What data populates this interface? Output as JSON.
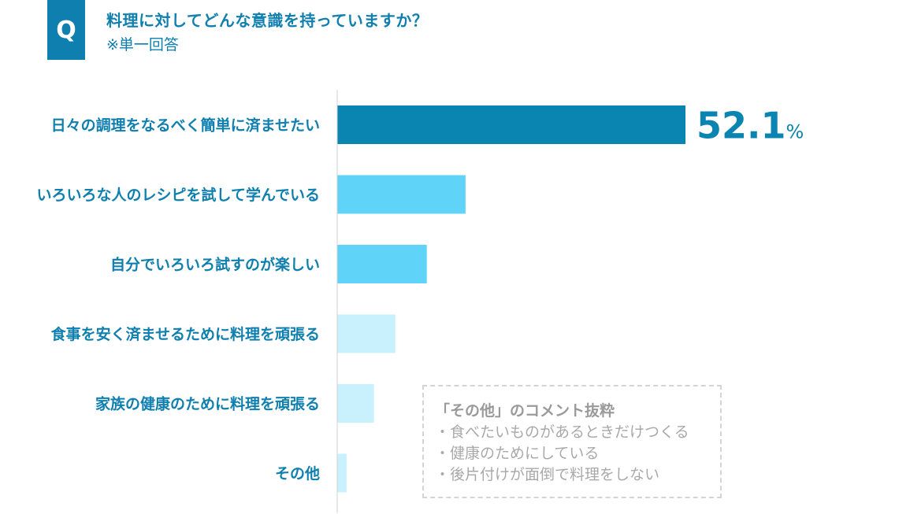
{
  "question": {
    "badge": "Q",
    "title": "料理に対してどんな意識を持っていますか？",
    "note": "※単一回答"
  },
  "colors": {
    "accent": "#0e7fae",
    "top_bar": "#0a84b0",
    "mid_bar": "#5fd3f8",
    "light_bar": "#c9f0fd",
    "text": "#0e7fae"
  },
  "chart_data": {
    "type": "bar",
    "orientation": "horizontal",
    "categories": [
      "日々の調理をなるべく簡単に済ませたい",
      "いろいろな人のレシピを試して学んでいる",
      "自分でいろいろ試すのが楽しい",
      "食事を安く済ませるために料理を頑張る",
      "家族の健康のために料理を頑張る",
      "その他"
    ],
    "values": [
      52.1,
      19.2,
      13.4,
      8.7,
      5.5,
      1.4
    ],
    "unit": "%",
    "data_labels": [
      {
        "index": 0,
        "number": "52.1",
        "unit": "%"
      }
    ],
    "xlim": [
      0,
      60
    ],
    "grid": false
  },
  "comment_box": {
    "title": "「その他」のコメント抜粋",
    "items": [
      "・食べたいものがあるときだけつくる",
      "・健康のためにしている",
      "・後片付けが面倒で料理をしない"
    ]
  }
}
